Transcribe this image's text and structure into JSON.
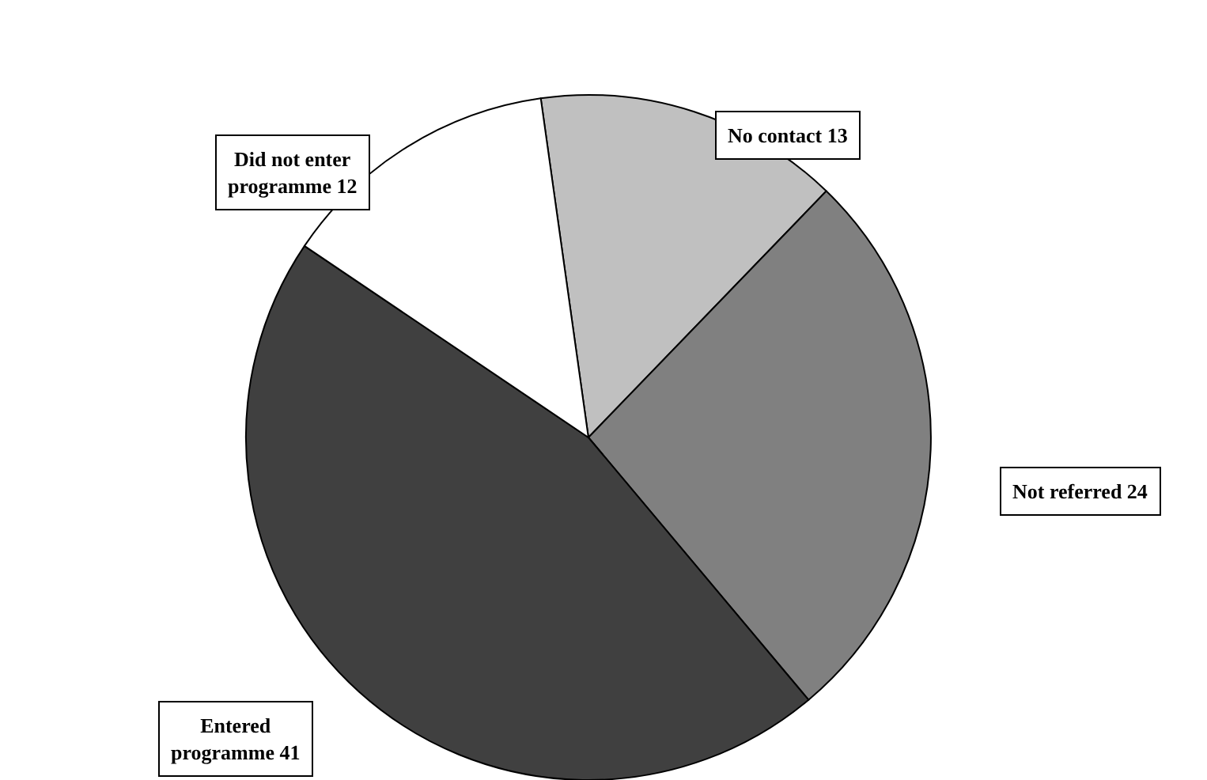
{
  "chart_data": {
    "type": "pie",
    "categories": [
      "No contact 13",
      "Not referred 24",
      "Entered programme 41",
      "Did not enter programme 12"
    ],
    "values": [
      13,
      24,
      41,
      12
    ],
    "colors": [
      "#c0c0c0",
      "#808080",
      "#404040",
      "#ffffff"
    ],
    "legend": false
  }
}
